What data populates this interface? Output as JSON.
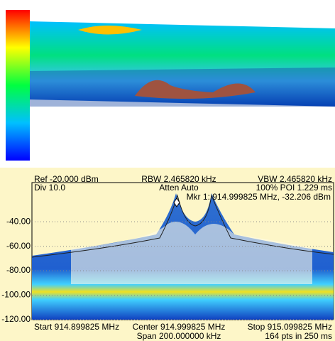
{
  "chart_data": {
    "type": "density",
    "ref": "Ref -20.000 dBm",
    "div": "Div 10.0",
    "rbw": "RBW 2.465820 kHz",
    "atten": "Atten Auto",
    "vbw": "VBW 2.465820 kHz",
    "poi": "100% POI 1.229 ms",
    "marker": "Mkr 1: 914.999825 MHz, -32.206 dBm",
    "start": "Start 914.899825 MHz",
    "center": "Center 914.999825 MHz",
    "span": "Span 200.000000 kHz",
    "stop": "Stop 915.099825 MHz",
    "points": "164 pts in 250 ms",
    "ylim": [
      -120,
      -8
    ],
    "yticks": [
      {
        "value": -40,
        "label": "-40.00"
      },
      {
        "value": -60,
        "label": "-60.00"
      },
      {
        "value": -80,
        "label": "-80.00"
      },
      {
        "value": -100,
        "label": "-100.00"
      },
      {
        "value": -120,
        "label": "-120.00"
      }
    ],
    "grid": true
  }
}
